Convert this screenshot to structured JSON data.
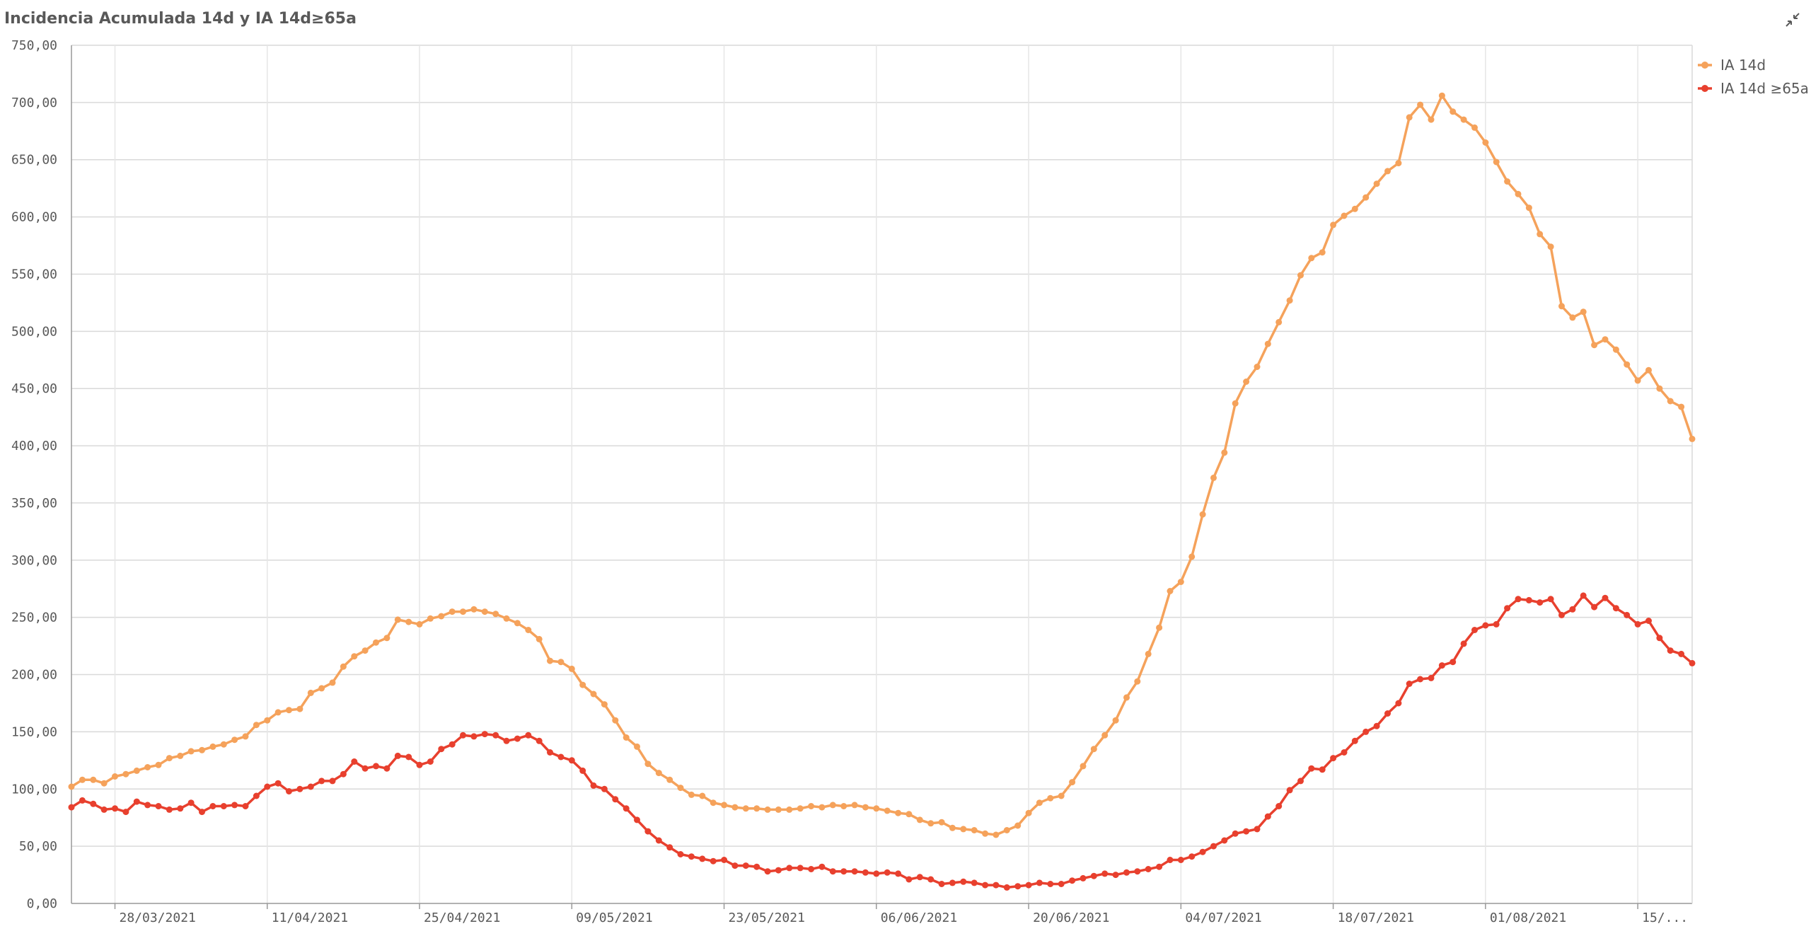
{
  "title": "Incidencia Acumulada 14d y IA 14d≥65a",
  "expand_icon": "collapse-arrows-icon",
  "chart_data": {
    "type": "line",
    "title": "Incidencia Acumulada 14d y IA 14d≥65a",
    "xlabel": "",
    "ylabel": "",
    "ylim": [
      0,
      750
    ],
    "grid": true,
    "legend_position": "top-right",
    "yticks": [
      "0,00",
      "50,00",
      "100,00",
      "150,00",
      "200,00",
      "250,00",
      "300,00",
      "350,00",
      "400,00",
      "450,00",
      "500,00",
      "550,00",
      "600,00",
      "650,00",
      "700,00",
      "750,00"
    ],
    "xticks": [
      {
        "label": "28/03/2021",
        "index": 4
      },
      {
        "label": "11/04/2021",
        "index": 18
      },
      {
        "label": "25/04/2021",
        "index": 32
      },
      {
        "label": "09/05/2021",
        "index": 46
      },
      {
        "label": "23/05/2021",
        "index": 60
      },
      {
        "label": "06/06/2021",
        "index": 74
      },
      {
        "label": "20/06/2021",
        "index": 88
      },
      {
        "label": "04/07/2021",
        "index": 102
      },
      {
        "label": "18/07/2021",
        "index": 116
      },
      {
        "label": "01/08/2021",
        "index": 130
      },
      {
        "label": "15/...",
        "index": 144
      }
    ],
    "x_start": "24/03/2021",
    "x_end": "16/08/2021",
    "series": [
      {
        "name": "IA 14d",
        "color": "#f5a25b",
        "values": [
          102,
          108,
          108,
          105,
          111,
          113,
          116,
          119,
          121,
          127,
          129,
          133,
          134,
          137,
          139,
          143,
          146,
          156,
          160,
          167,
          169,
          170,
          184,
          188,
          193,
          207,
          216,
          221,
          228,
          232,
          248,
          246,
          244,
          249,
          251,
          255,
          255,
          257,
          255,
          253,
          249,
          245,
          239,
          231,
          212,
          211,
          205,
          191,
          183,
          174,
          160,
          145,
          137,
          122,
          114,
          108,
          101,
          95,
          94,
          88,
          86,
          84,
          83,
          83,
          82,
          82,
          82,
          83,
          85,
          84,
          86,
          85,
          86,
          84,
          83,
          81,
          79,
          78,
          73,
          70,
          71,
          66,
          65,
          64,
          61,
          60,
          64,
          68,
          79,
          88,
          92,
          94,
          106,
          120,
          135,
          147,
          160,
          180,
          194,
          218,
          241,
          273,
          281,
          303,
          340,
          372,
          394,
          437,
          456,
          469,
          489,
          508,
          527,
          549,
          564,
          569,
          593,
          601,
          607,
          617,
          629,
          640,
          647,
          687,
          698,
          685,
          706,
          692,
          685,
          678,
          665,
          648,
          631,
          620,
          608,
          585,
          574,
          522,
          512,
          517,
          488,
          493,
          484,
          471,
          457,
          466,
          450,
          439,
          434,
          406
        ]
      },
      {
        "name": "IA 14d ≥65a",
        "color": "#e8402e",
        "values": [
          84,
          90,
          87,
          82,
          83,
          80,
          89,
          86,
          85,
          82,
          83,
          88,
          80,
          85,
          85,
          86,
          85,
          94,
          102,
          105,
          98,
          100,
          102,
          107,
          107,
          113,
          124,
          118,
          120,
          118,
          129,
          128,
          121,
          124,
          135,
          139,
          147,
          146,
          148,
          147,
          142,
          144,
          147,
          142,
          132,
          128,
          125,
          116,
          103,
          100,
          91,
          83,
          73,
          63,
          55,
          49,
          43,
          41,
          39,
          37,
          38,
          33,
          33,
          32,
          28,
          29,
          31,
          31,
          30,
          32,
          28,
          28,
          28,
          27,
          26,
          27,
          26,
          21,
          23,
          21,
          17,
          18,
          19,
          18,
          16,
          16,
          14,
          15,
          16,
          18,
          17,
          17,
          20,
          22,
          24,
          26,
          25,
          27,
          28,
          30,
          32,
          38,
          38,
          41,
          45,
          50,
          55,
          61,
          63,
          65,
          76,
          85,
          99,
          107,
          118,
          117,
          127,
          132,
          142,
          150,
          155,
          166,
          175,
          192,
          196,
          197,
          208,
          211,
          227,
          239,
          243,
          244,
          258,
          266,
          265,
          263,
          266,
          252,
          257,
          269,
          259,
          267,
          258,
          252,
          244,
          247,
          232,
          221,
          218,
          210
        ]
      }
    ]
  }
}
